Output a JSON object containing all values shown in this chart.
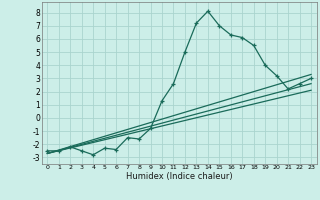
{
  "xlabel": "Humidex (Indice chaleur)",
  "bg_color": "#cceee8",
  "grid_color": "#aad4ce",
  "line_color": "#1a6b5a",
  "xlim": [
    -0.5,
    23.5
  ],
  "ylim": [
    -3.5,
    8.8
  ],
  "yticks": [
    -3,
    -2,
    -1,
    0,
    1,
    2,
    3,
    4,
    5,
    6,
    7,
    8
  ],
  "xticks": [
    0,
    1,
    2,
    3,
    4,
    5,
    6,
    7,
    8,
    9,
    10,
    11,
    12,
    13,
    14,
    15,
    16,
    17,
    18,
    19,
    20,
    21,
    22,
    23
  ],
  "main_x": [
    0,
    1,
    2,
    3,
    4,
    5,
    6,
    7,
    8,
    9,
    10,
    11,
    12,
    13,
    14,
    15,
    16,
    17,
    18,
    19,
    20,
    21,
    22,
    23
  ],
  "main_y": [
    -2.5,
    -2.5,
    -2.2,
    -2.5,
    -2.8,
    -2.3,
    -2.4,
    -1.5,
    -1.6,
    -0.8,
    1.3,
    2.6,
    5.0,
    7.2,
    8.1,
    7.0,
    6.3,
    6.1,
    5.5,
    4.0,
    3.2,
    2.2,
    2.6,
    3.0
  ],
  "ref_line1_x": [
    0,
    23
  ],
  "ref_line1_y": [
    -2.7,
    3.3
  ],
  "ref_line2_x": [
    0,
    23
  ],
  "ref_line2_y": [
    -2.7,
    2.6
  ],
  "ref_line3_x": [
    0,
    23
  ],
  "ref_line3_y": [
    -2.7,
    2.1
  ]
}
